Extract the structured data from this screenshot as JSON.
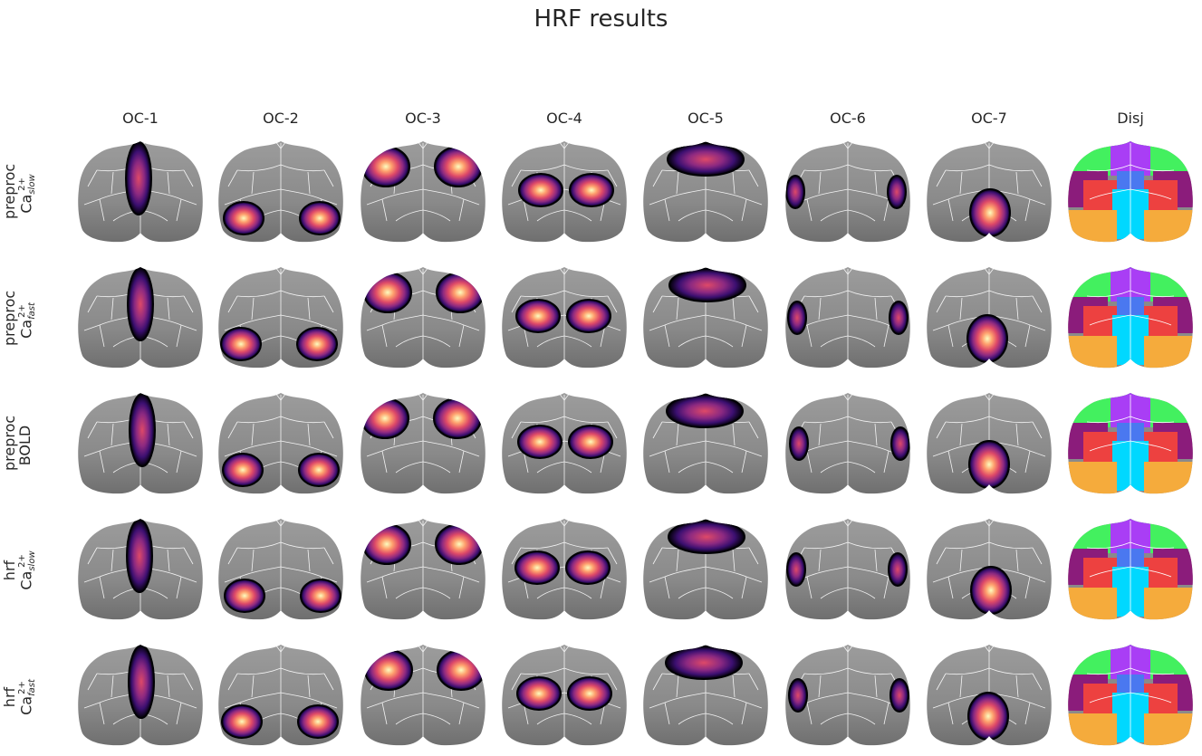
{
  "title": "HRF results",
  "columns": [
    "OC-1",
    "OC-2",
    "OC-3",
    "OC-4",
    "OC-5",
    "OC-6",
    "OC-7",
    "Disj"
  ],
  "rows": [
    {
      "line1": "preproc",
      "base": "Ca",
      "sup": "2+",
      "sub": "slow"
    },
    {
      "line1": "preproc",
      "base": "Ca",
      "sup": "2+",
      "sub": "fast"
    },
    {
      "line1": "preproc",
      "base": "BOLD",
      "sup": "",
      "sub": ""
    },
    {
      "line1": "hrf",
      "base": "Ca",
      "sup": "2+",
      "sub": "slow"
    },
    {
      "line1": "hrf",
      "base": "Ca",
      "sup": "2+",
      "sub": "fast"
    }
  ],
  "colormap": [
    "#000004",
    "#3b0f70",
    "#8c2981",
    "#de4968",
    "#fe9f6d",
    "#fcfdbf"
  ],
  "disjoint_colors": {
    "OC-1": "#a93ef5",
    "OC-2": "#f5ab3c",
    "OC-3": "#43f05f",
    "OC-4": "#ed4140",
    "OC-5": "#8b1c7b",
    "OC-6": "#4a78f0",
    "OC-7": "#00d8ff"
  },
  "background_gray": "#8a8a8a"
}
